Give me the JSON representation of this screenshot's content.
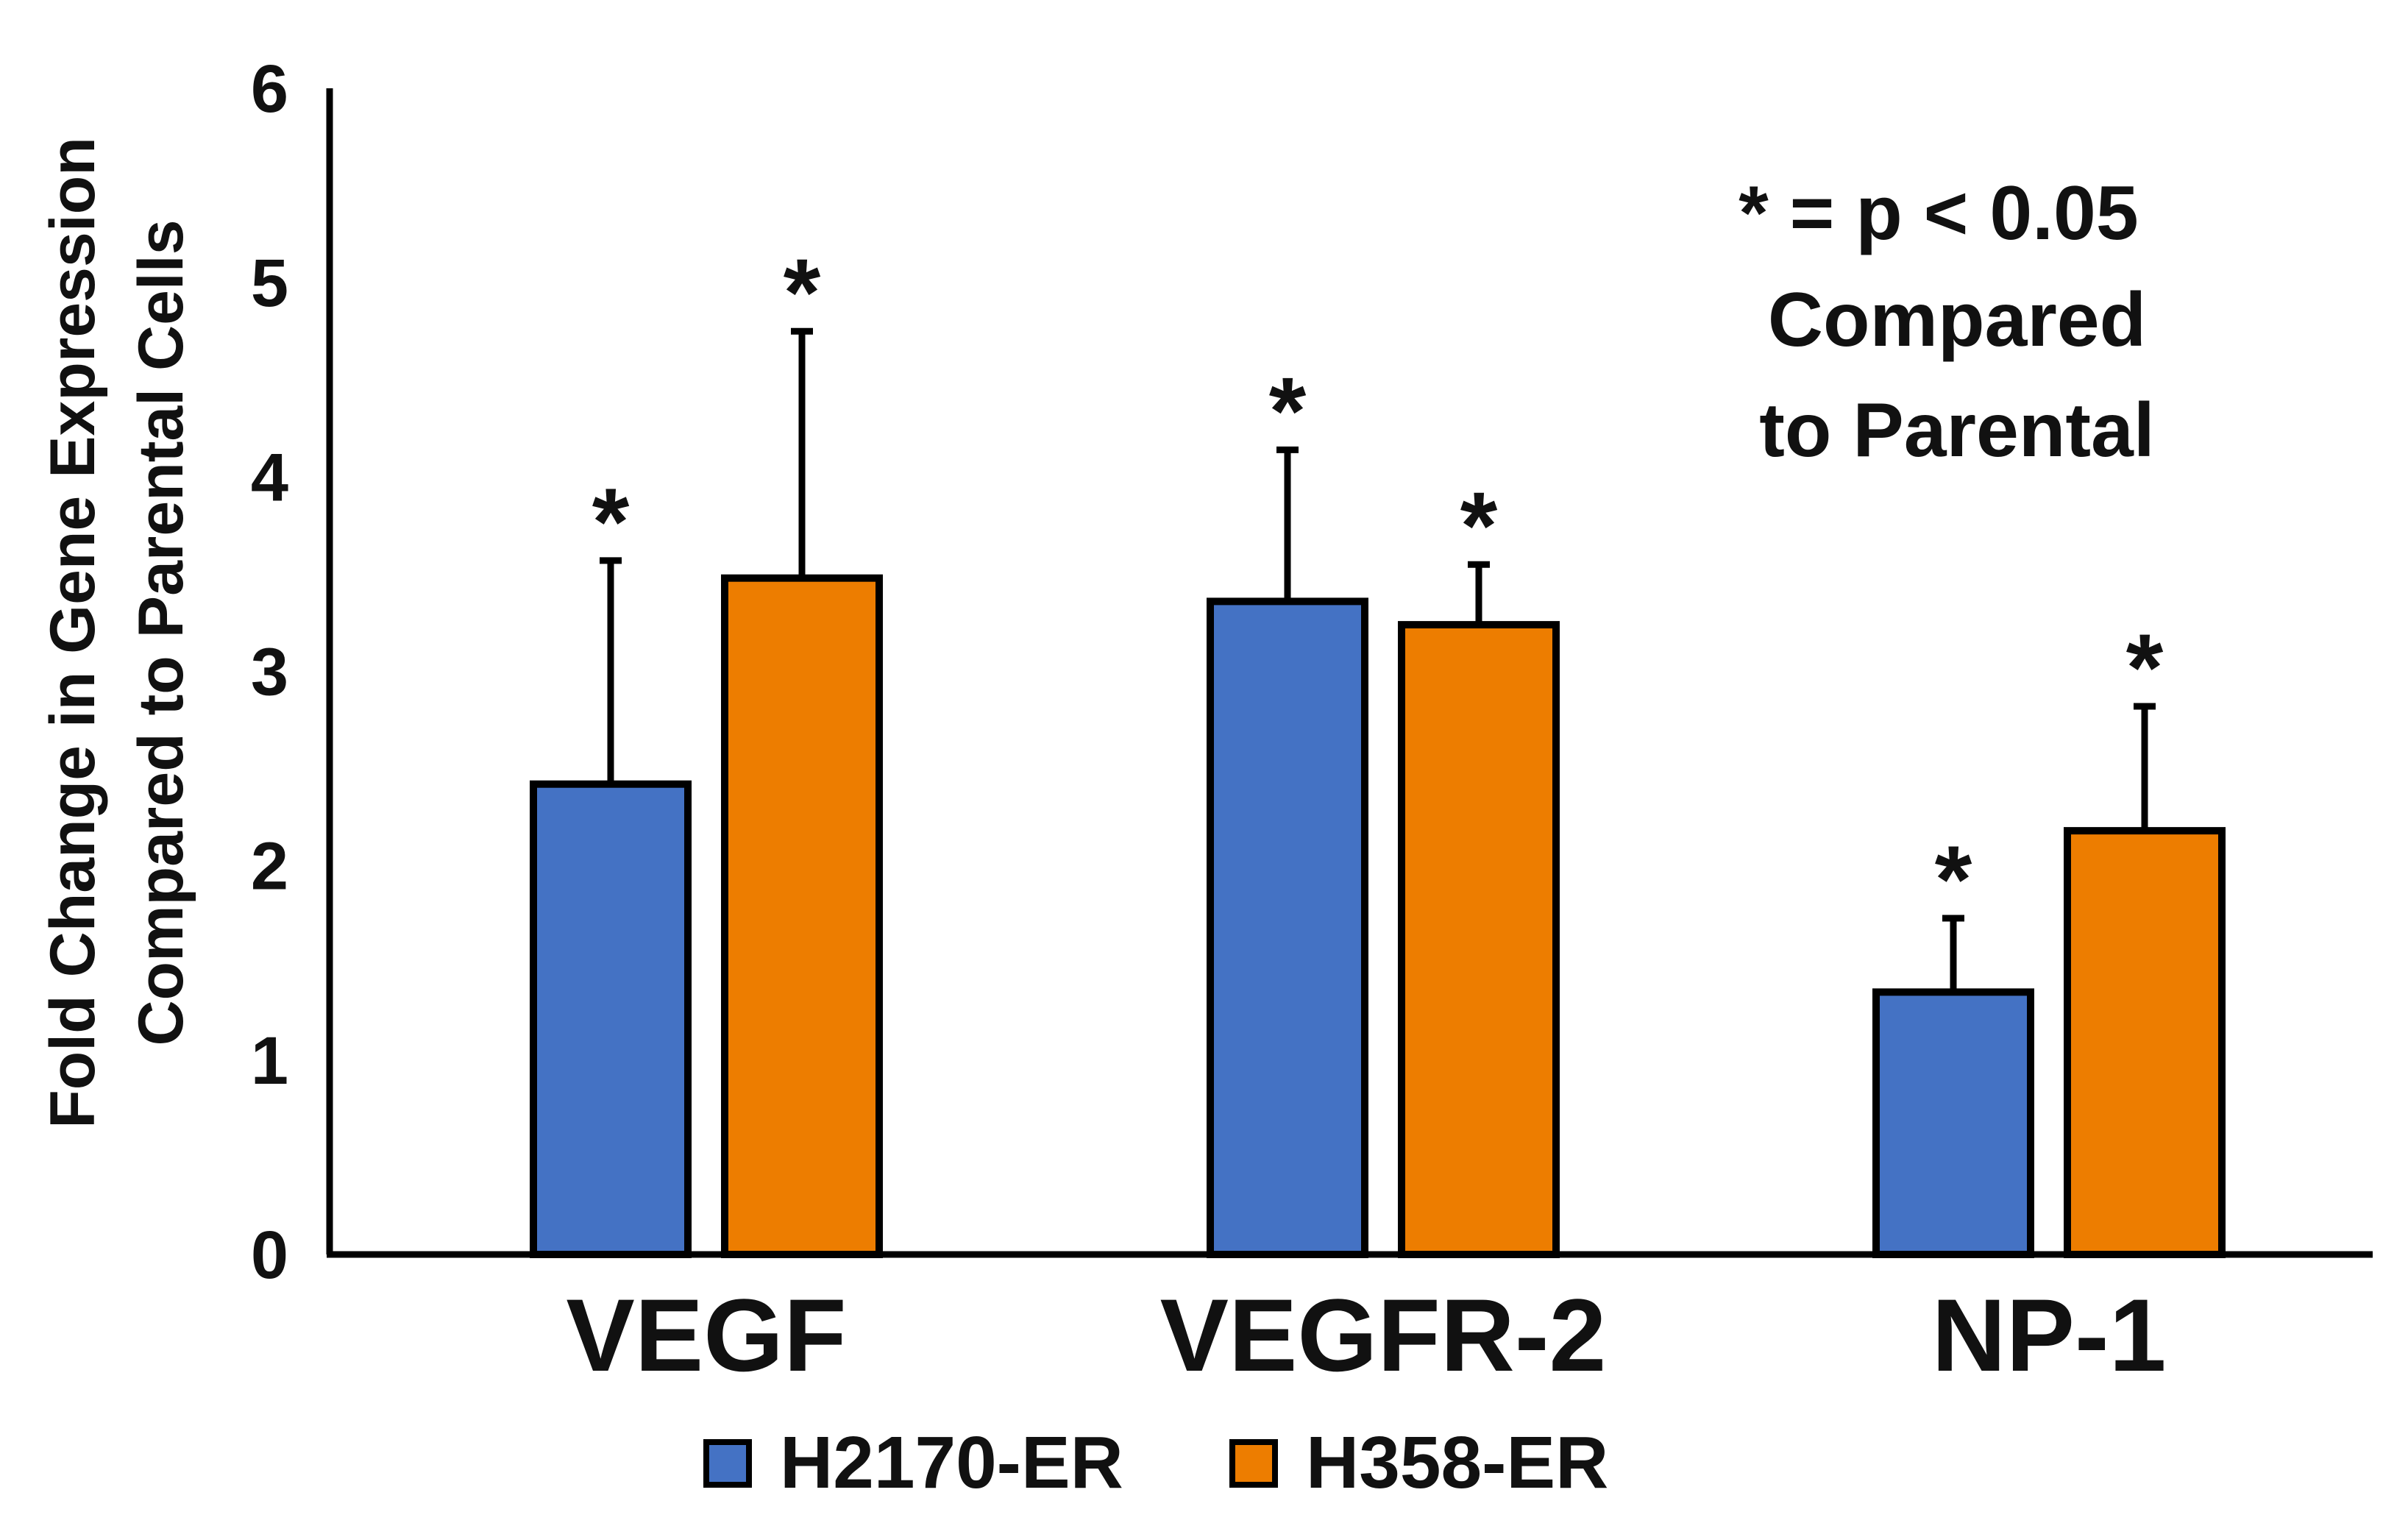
{
  "chart_data": {
    "type": "bar",
    "title": "",
    "xlabel": "",
    "ylabel": "Fold Change in Gene Expression Compared to Parental Cells",
    "ylabel_lines": [
      "Fold Change in Gene Expression",
      "Compared to Parental Cells"
    ],
    "ylim": [
      0,
      6
    ],
    "yticks": [
      0,
      1,
      2,
      3,
      4,
      5,
      6
    ],
    "grid": false,
    "legend_position": "bottom",
    "categories": [
      "VEGF",
      "VEGFR-2",
      "NP-1"
    ],
    "series": [
      {
        "name": "H2170-ER",
        "color": "#4472C4",
        "values": [
          2.42,
          3.36,
          1.35
        ],
        "errors": [
          1.15,
          0.78,
          0.38
        ],
        "significant": [
          true,
          true,
          true
        ]
      },
      {
        "name": "H358-ER",
        "color": "#ED7D00",
        "values": [
          3.48,
          3.24,
          2.18
        ],
        "errors": [
          1.27,
          0.31,
          0.64
        ],
        "significant": [
          true,
          true,
          true
        ]
      }
    ],
    "significance_marker": "*",
    "annotation_lines": [
      "* = p < 0.05",
      "Compared",
      "to Parental"
    ]
  }
}
